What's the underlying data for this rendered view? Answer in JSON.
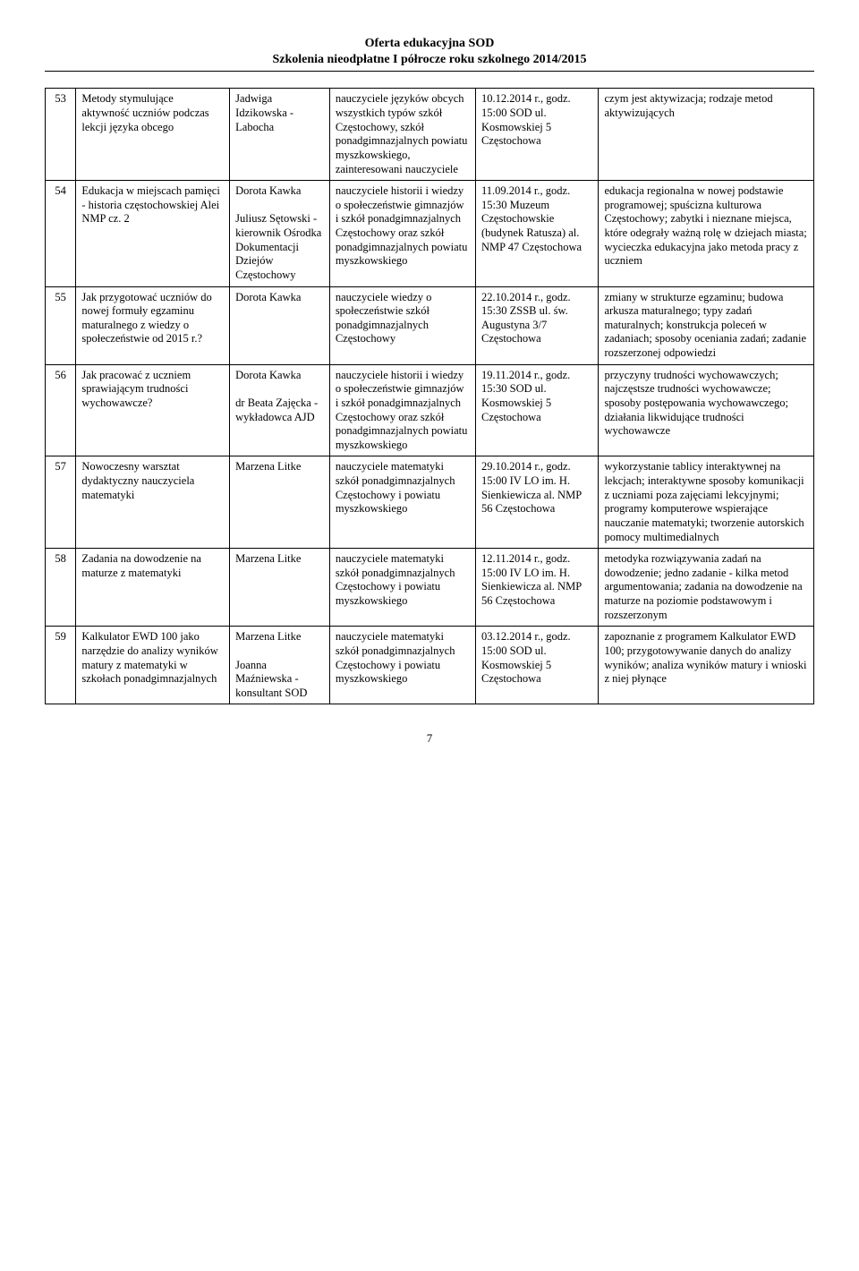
{
  "header": {
    "line1": "Oferta edukacyjna SOD",
    "line2": "Szkolenia nieodpłatne I półrocze roku szkolnego 2014/2015"
  },
  "page_number": "7",
  "rows": [
    {
      "num": "53",
      "topic": "Metody stymulujące aktywność uczniów podczas lekcji języka obcego",
      "authors": "Jadwiga Idzikowska -Labocha",
      "audience": "nauczyciele języków obcych wszystkich typów szkół Częstochowy, szkół ponadgimnazjalnych powiatu myszkowskiego, zainteresowani nauczyciele",
      "date": "10.12.2014 r., godz. 15:00 SOD ul. Kosmowskiej 5 Częstochowa",
      "desc": "czym jest aktywizacja; rodzaje metod aktywizujących"
    },
    {
      "num": "54",
      "topic": "Edukacja w miejscach pamięci - historia częstochowskiej Alei NMP cz. 2",
      "authors": "Dorota Kawka\n\nJuliusz Sętowski - kierownik Ośrodka Dokumentacji Dziejów Częstochowy",
      "audience": "nauczyciele historii i wiedzy o społeczeństwie gimnazjów i szkół ponadgimnazjalnych Częstochowy oraz szkół ponadgimnazjalnych powiatu myszkowskiego",
      "date": "11.09.2014 r., godz. 15:30 Muzeum Częstochowskie (budynek Ratusza) al. NMP 47 Częstochowa",
      "desc": "edukacja regionalna w nowej podstawie programowej; spuścizna kulturowa Częstochowy; zabytki i nieznane miejsca, które odegrały ważną rolę w dziejach miasta; wycieczka edukacyjna jako metoda pracy z uczniem"
    },
    {
      "num": "55",
      "topic": "Jak przygotować uczniów do nowej formuły egzaminu maturalnego z wiedzy o społeczeństwie od 2015 r.?",
      "authors": "Dorota Kawka",
      "audience": "nauczyciele wiedzy o społeczeństwie szkół ponadgimnazjalnych Częstochowy",
      "date": "22.10.2014 r., godz. 15:30 ZSSB ul. św. Augustyna 3/7 Częstochowa",
      "desc": "zmiany w strukturze egzaminu; budowa arkusza maturalnego; typy zadań maturalnych; konstrukcja poleceń w zadaniach; sposoby oceniania zadań; zadanie rozszerzonej odpowiedzi"
    },
    {
      "num": "56",
      "topic": "Jak pracować z uczniem sprawiającym trudności wychowawcze?",
      "authors": "Dorota Kawka\n\ndr Beata Zajęcka - wykładowca AJD",
      "audience": "nauczyciele historii i wiedzy o społeczeństwie gimnazjów i szkół ponadgimnazjalnych Częstochowy oraz szkół ponadgimnazjalnych powiatu myszkowskiego",
      "date": "19.11.2014 r., godz. 15:30 SOD ul. Kosmowskiej 5 Częstochowa",
      "desc": "przyczyny trudności wychowawczych; najczęstsze trudności wychowawcze; sposoby postępowania wychowawczego; działania likwidujące trudności wychowawcze"
    },
    {
      "num": "57",
      "topic": "Nowoczesny warsztat dydaktyczny nauczyciela matematyki",
      "authors": "Marzena Litke",
      "audience": "nauczyciele matematyki szkół ponadgimnazjalnych Częstochowy i powiatu myszkowskiego",
      "date": "29.10.2014 r., godz. 15:00 IV LO im. H. Sienkiewicza al. NMP 56 Częstochowa",
      "desc": "wykorzystanie tablicy interaktywnej na lekcjach; interaktywne sposoby komunikacji z uczniami poza zajęciami lekcyjnymi; programy komputerowe wspierające nauczanie matematyki; tworzenie autorskich pomocy multimedialnych"
    },
    {
      "num": "58",
      "topic": "Zadania na dowodzenie na maturze z matematyki",
      "authors": "Marzena Litke",
      "audience": "nauczyciele matematyki szkół ponadgimnazjalnych Częstochowy i powiatu myszkowskiego",
      "date": "12.11.2014 r., godz. 15:00 IV LO im. H. Sienkiewicza al. NMP 56 Częstochowa",
      "desc": "metodyka rozwiązywania zadań na dowodzenie; jedno zadanie - kilka metod argumentowania; zadania na dowodzenie na maturze na poziomie podstawowym i rozszerzonym"
    },
    {
      "num": "59",
      "topic": "Kalkulator EWD 100 jako narzędzie do analizy wyników matury z matematyki w szkołach ponadgimnazjalnych",
      "authors": "Marzena Litke\n\nJoanna Maźniewska - konsultant SOD",
      "audience": "nauczyciele matematyki szkół ponadgimnazjalnych Częstochowy i powiatu myszkowskiego",
      "date": "03.12.2014 r., godz. 15:00 SOD ul. Kosmowskiej 5 Częstochowa",
      "desc": "zapoznanie z programem Kalkulator EWD 100; przygotowywanie danych do analizy wyników; analiza wyników matury i wnioski z niej płynące"
    }
  ]
}
